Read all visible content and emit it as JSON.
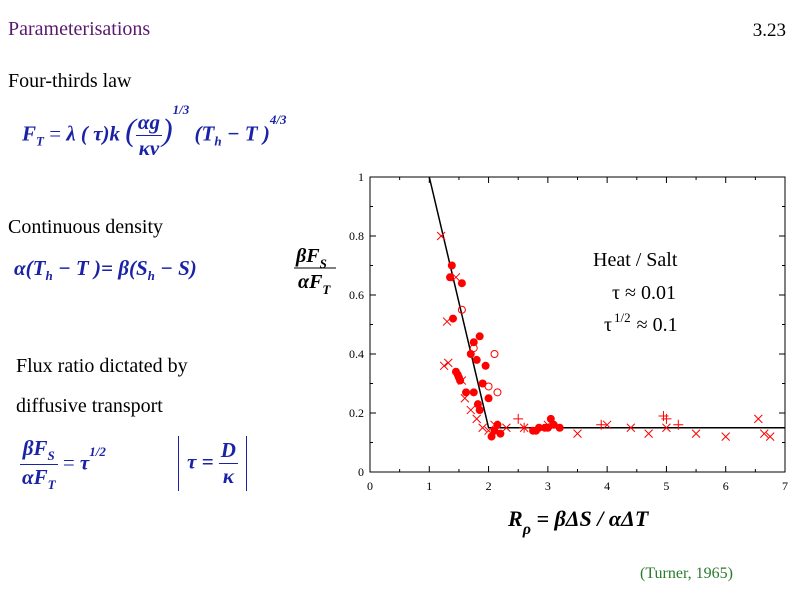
{
  "slide": {
    "title": "Parameterisations",
    "number": "3.23",
    "citation": "(Turner, 1965)"
  },
  "sections": {
    "four_thirds": "Four-thirds law",
    "continuous_density": "Continuous density",
    "flux_ratio_line1": "Flux ratio dictated by",
    "flux_ratio_line2": "diffusive transport"
  },
  "equations": {
    "four_thirds": {
      "lhs": "F",
      "lhs_sub": "T",
      "equals": "=",
      "lambda_term": "λ ( τ)k",
      "frac_num": "αg",
      "frac_den": "κν",
      "exp_13": "1/3",
      "paren": "(T",
      "paren_sub": "h",
      "paren_rest": " − T )",
      "exp_43": "4/3"
    },
    "continuous_density": {
      "left": "α(T",
      "left_sub": "h",
      "left_rest": " − T )=",
      "right": "β(S",
      "right_sub": "h",
      "right_rest": " − S)"
    },
    "flux_ratio": {
      "num": "βF",
      "num_sub": "S",
      "den": "αF",
      "den_sub": "T",
      "equals": "=",
      "tau": "τ",
      "tau_exp": "1/2",
      "bracket_lhs": "τ =",
      "bracket_num": "D",
      "bracket_den": "κ"
    }
  },
  "chart_data": {
    "type": "scatter",
    "title": "",
    "xlabel": "R ρ = βΔS / αΔT",
    "xlabel_main": "R",
    "xlabel_sub": "ρ",
    "xlabel_rest": " = βΔS / αΔT",
    "ylabel_num": "βF",
    "ylabel_num_sub": "S",
    "ylabel_den": "αF",
    "ylabel_den_sub": "T",
    "xlim": [
      0,
      7
    ],
    "ylim": [
      0,
      1
    ],
    "x_ticks": [
      "0",
      "1",
      "2",
      "3",
      "4",
      "5",
      "6",
      "7"
    ],
    "y_ticks": [
      "0",
      "0.2",
      "0.4",
      "0.6",
      "0.8",
      "1"
    ],
    "grid": false,
    "annotation": {
      "line1": "Heat / Salt",
      "line2": "τ ≈ 0.01",
      "line3_pre": "τ",
      "line3_exp": "1/2",
      "line3_post": "≈ 0.1"
    },
    "colors": {
      "points": "#ff0000",
      "fit": "#000000",
      "axes": "#000000"
    },
    "fit_line": {
      "x": [
        1,
        2,
        7
      ],
      "y": [
        1.0,
        0.15,
        0.15
      ]
    },
    "series": [
      {
        "marker": "filled-circle",
        "x": [
          1.35,
          1.38,
          1.4,
          1.45,
          1.5,
          1.55,
          1.62,
          1.7,
          1.75,
          1.8,
          1.82,
          1.85,
          1.9,
          1.95,
          2.0,
          2.05,
          2.1,
          2.15,
          2.2,
          2.75,
          2.8,
          2.85,
          2.95,
          3.0,
          3.05,
          3.1,
          3.2,
          1.75,
          1.85,
          1.48,
          1.52
        ],
        "y": [
          0.66,
          0.7,
          0.52,
          0.34,
          0.32,
          0.64,
          0.27,
          0.4,
          0.44,
          0.38,
          0.23,
          0.21,
          0.3,
          0.36,
          0.25,
          0.12,
          0.14,
          0.16,
          0.13,
          0.14,
          0.14,
          0.15,
          0.15,
          0.15,
          0.18,
          0.16,
          0.15,
          0.27,
          0.46,
          0.33,
          0.31
        ]
      },
      {
        "marker": "open-circle",
        "x": [
          1.55,
          1.75,
          2.0,
          2.1,
          2.15
        ],
        "y": [
          0.55,
          0.42,
          0.29,
          0.4,
          0.27
        ]
      },
      {
        "marker": "cross",
        "x": [
          1.2,
          1.25,
          1.3,
          1.32,
          1.45,
          1.55,
          1.6,
          1.7,
          1.8,
          1.9,
          2.0,
          2.1,
          2.3,
          2.6,
          3.0,
          3.5,
          4.0,
          4.4,
          4.7,
          5.0,
          5.5,
          6.0,
          6.55,
          6.65,
          6.75
        ],
        "y": [
          0.8,
          0.36,
          0.51,
          0.37,
          0.66,
          0.31,
          0.25,
          0.21,
          0.18,
          0.15,
          0.14,
          0.16,
          0.15,
          0.15,
          0.16,
          0.13,
          0.16,
          0.15,
          0.13,
          0.15,
          0.13,
          0.12,
          0.18,
          0.13,
          0.12
        ]
      },
      {
        "marker": "plus",
        "x": [
          2.5,
          2.6,
          3.9,
          4.95,
          5.0,
          5.2
        ],
        "y": [
          0.18,
          0.15,
          0.16,
          0.19,
          0.18,
          0.16
        ]
      }
    ]
  }
}
